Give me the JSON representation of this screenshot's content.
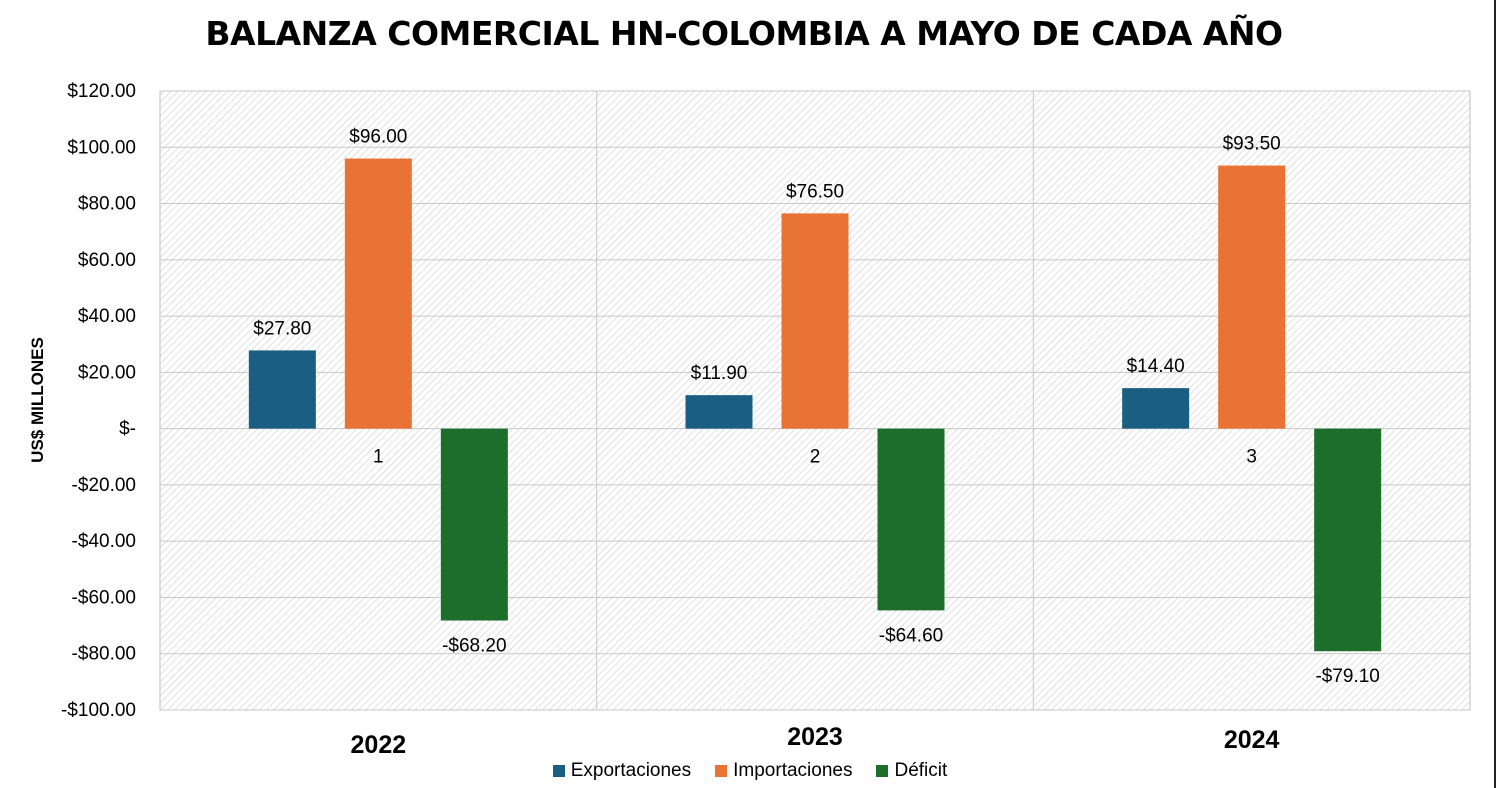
{
  "chart_data": {
    "type": "bar",
    "title": "BALANZA COMERCIAL HN-COLOMBIA A MAYO DE CADA AÑO",
    "ylabel": "US$ MILLONES",
    "xlabel": "",
    "categories": [
      "2022",
      "2023",
      "2024"
    ],
    "category_index_labels": [
      "1",
      "2",
      "3"
    ],
    "ylim": [
      -100,
      120
    ],
    "yticks": [
      120,
      100,
      80,
      60,
      40,
      20,
      0,
      -20,
      -40,
      -60,
      -80,
      -100
    ],
    "ytick_labels": [
      "$120.00",
      "$100.00",
      "$80.00",
      "$60.00",
      "$40.00",
      "$20.00",
      "$-",
      "-$20.00",
      "-$40.00",
      "-$60.00",
      "-$80.00",
      "-$100.00"
    ],
    "grid": true,
    "legend_position": "bottom",
    "series": [
      {
        "name": "Exportaciones",
        "color": "#1a5e82",
        "values": [
          27.8,
          11.9,
          14.4
        ],
        "labels": [
          "$27.80",
          "$11.90",
          "$14.40"
        ]
      },
      {
        "name": "Importaciones",
        "color": "#e87335",
        "values": [
          96.0,
          76.5,
          93.5
        ],
        "labels": [
          "$96.00",
          "$76.50",
          "$93.50"
        ]
      },
      {
        "name": "Déficit",
        "color": "#1d6e2b",
        "values": [
          -68.2,
          -64.6,
          -79.1
        ],
        "labels": [
          "-$68.20",
          "-$64.60",
          "-$79.10"
        ]
      }
    ]
  }
}
